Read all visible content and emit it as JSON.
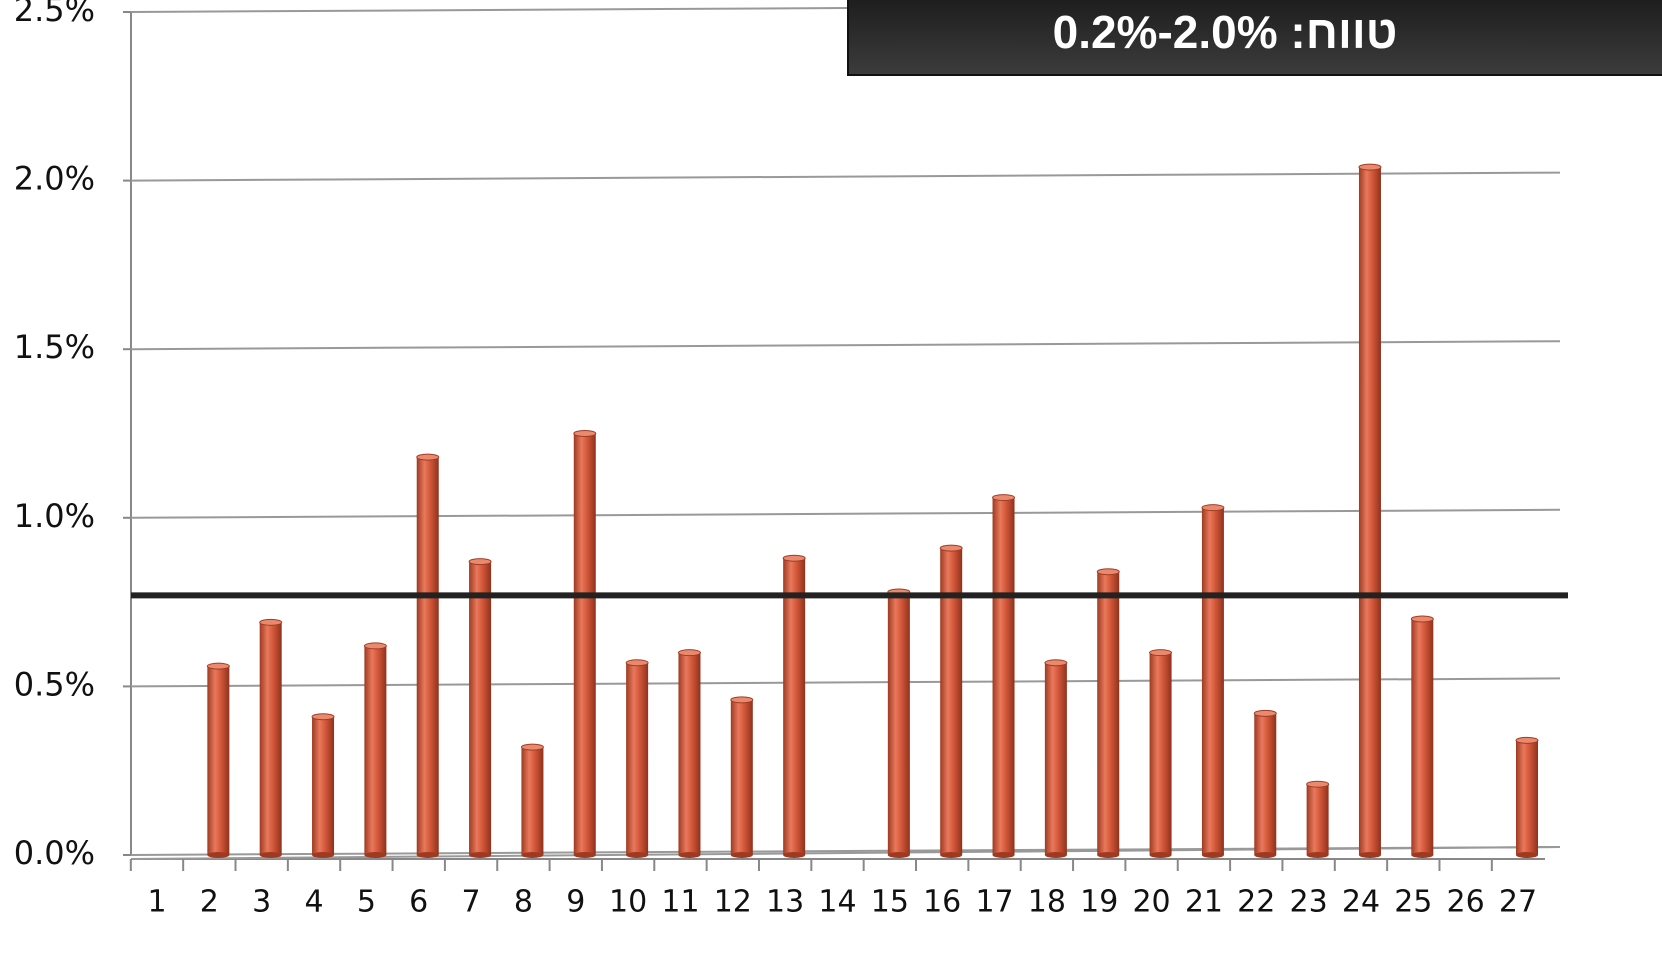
{
  "chart_data": {
    "type": "bar",
    "title": "טווח: 2.0%-0.2%",
    "categories": [
      "1",
      "2",
      "3",
      "4",
      "5",
      "6",
      "7",
      "8",
      "9",
      "10",
      "11",
      "12",
      "13",
      "14",
      "15",
      "16",
      "17",
      "18",
      "19",
      "20",
      "21",
      "22",
      "23",
      "24",
      "25",
      "26",
      "27"
    ],
    "values": [
      0,
      0.56,
      0.69,
      0.41,
      0.62,
      1.18,
      0.87,
      0.32,
      1.25,
      0.57,
      0.6,
      0.46,
      0.88,
      0,
      0.78,
      0.91,
      1.06,
      0.57,
      0.84,
      0.6,
      1.03,
      0.42,
      0.21,
      2.04,
      0.7,
      0,
      0.34
    ],
    "color": "#d4583a",
    "reference_line": 0.77,
    "ylim": [
      0,
      2.5
    ],
    "yticks": [
      {
        "value": 0,
        "label": "0.0%"
      },
      {
        "value": 0.5,
        "label": "0.5%"
      },
      {
        "value": 1.0,
        "label": "1.0%"
      },
      {
        "value": 1.5,
        "label": "1.5%"
      },
      {
        "value": 2.0,
        "label": "2.0%"
      },
      {
        "value": 2.5,
        "label": "2.5%"
      }
    ],
    "grid": true
  }
}
